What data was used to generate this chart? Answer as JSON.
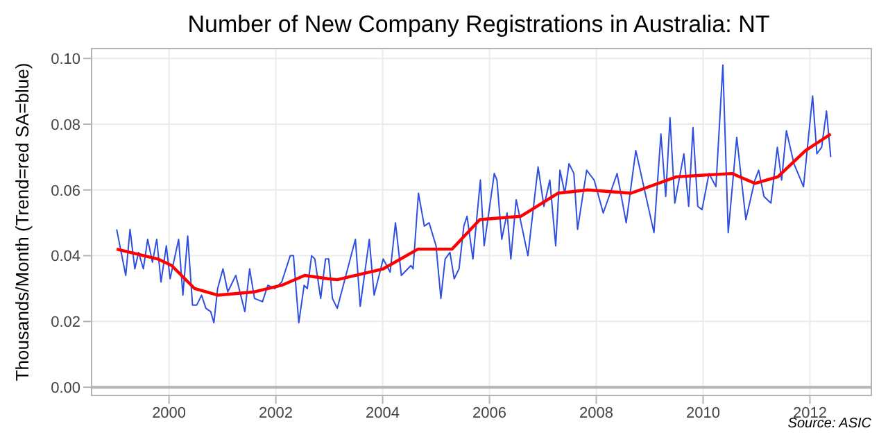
{
  "chart_data": {
    "type": "line",
    "title": "Number of New Company Registrations in Australia: NT",
    "ylabel": "Thousands/Month (Trend=red SA=blue)",
    "annotations": [
      "Source: ASIC"
    ],
    "xlim": [
      1998.55,
      2013.15
    ],
    "xticks": [
      2000,
      2002,
      2004,
      2006,
      2008,
      2010,
      2012
    ],
    "ylim": [
      -0.0025,
      0.103
    ],
    "yticks": [
      {
        "value": 0,
        "label": "0.00"
      },
      {
        "value": 0.02,
        "label": "0.02"
      },
      {
        "value": 0.04,
        "label": "0.04"
      },
      {
        "value": 0.06,
        "label": "0.06"
      },
      {
        "value": 0.08,
        "label": "0.08"
      },
      {
        "value": 0.1,
        "label": "0.10"
      }
    ],
    "grid": true,
    "marker": "none",
    "ref_lines": [
      {
        "axis": "y",
        "value": 0,
        "color": "#b3b3b3"
      }
    ],
    "series": [
      {
        "color": "#2f4fe0",
        "x": [
          1999.02,
          1999.19,
          1999.27,
          1999.36,
          1999.43,
          1999.52,
          1999.6,
          1999.69,
          1999.77,
          1999.85,
          1999.95,
          2000.02,
          2000.18,
          2000.26,
          2000.35,
          2000.44,
          2000.52,
          2000.61,
          2000.69,
          2000.78,
          2000.84,
          2000.91,
          2001.01,
          2001.1,
          2001.25,
          2001.42,
          2001.51,
          2001.6,
          2001.75,
          2001.85,
          2001.98,
          2002.11,
          2002.27,
          2002.33,
          2002.43,
          2002.53,
          2002.59,
          2002.67,
          2002.73,
          2002.84,
          2002.93,
          2002.99,
          2003.06,
          2003.15,
          2003.49,
          2003.58,
          2003.75,
          2003.84,
          2004.01,
          2004.14,
          2004.24,
          2004.35,
          2004.53,
          2004.57,
          2004.67,
          2004.78,
          2004.87,
          2005.0,
          2005.09,
          2005.17,
          2005.26,
          2005.34,
          2005.43,
          2005.52,
          2005.58,
          2005.69,
          2005.83,
          2005.9,
          2006.09,
          2006.14,
          2006.23,
          2006.33,
          2006.4,
          2006.5,
          2006.72,
          2006.91,
          2007.02,
          2007.13,
          2007.24,
          2007.32,
          2007.41,
          2007.49,
          2007.58,
          2007.65,
          2007.82,
          2007.96,
          2008.13,
          2008.39,
          2008.56,
          2008.74,
          2009.08,
          2009.21,
          2009.3,
          2009.38,
          2009.47,
          2009.64,
          2009.73,
          2009.81,
          2009.9,
          2009.98,
          2010.11,
          2010.24,
          2010.37,
          2010.47,
          2010.63,
          2010.8,
          2010.97,
          2011.04,
          2011.14,
          2011.27,
          2011.39,
          2011.47,
          2011.56,
          2011.7,
          2011.88,
          2012.05,
          2012.13,
          2012.22,
          2012.31,
          2012.39
        ],
        "values": [
          0.048,
          0.034,
          0.048,
          0.036,
          0.041,
          0.036,
          0.045,
          0.038,
          0.045,
          0.032,
          0.043,
          0.033,
          0.045,
          0.028,
          0.046,
          0.025,
          0.025,
          0.028,
          0.024,
          0.023,
          0.0196,
          0.03,
          0.036,
          0.029,
          0.034,
          0.023,
          0.036,
          0.027,
          0.026,
          0.031,
          0.03,
          0.032,
          0.04,
          0.04,
          0.0196,
          0.031,
          0.03,
          0.04,
          0.039,
          0.027,
          0.039,
          0.039,
          0.027,
          0.024,
          0.045,
          0.0246,
          0.045,
          0.028,
          0.039,
          0.035,
          0.05,
          0.034,
          0.037,
          0.036,
          0.059,
          0.049,
          0.05,
          0.043,
          0.027,
          0.039,
          0.041,
          0.033,
          0.036,
          0.049,
          0.052,
          0.039,
          0.063,
          0.043,
          0.065,
          0.063,
          0.045,
          0.053,
          0.039,
          0.057,
          0.04,
          0.067,
          0.055,
          0.063,
          0.043,
          0.066,
          0.059,
          0.068,
          0.065,
          0.048,
          0.066,
          0.063,
          0.053,
          0.065,
          0.05,
          0.072,
          0.047,
          0.077,
          0.058,
          0.082,
          0.056,
          0.071,
          0.055,
          0.079,
          0.055,
          0.054,
          0.065,
          0.061,
          0.098,
          0.047,
          0.076,
          0.051,
          0.063,
          0.066,
          0.058,
          0.056,
          0.073,
          0.063,
          0.078,
          0.068,
          0.061,
          0.0886,
          0.071,
          0.073,
          0.084,
          0.07
        ]
      },
      {
        "color": "#ff0000",
        "x": [
          1999.02,
          1999.79,
          2000.05,
          2000.48,
          2000.91,
          2001.6,
          2002.11,
          2002.54,
          2002.97,
          2003.15,
          2004.01,
          2004.66,
          2005.3,
          2005.82,
          2006.59,
          2007.28,
          2007.84,
          2008.65,
          2009.5,
          2010.54,
          2010.97,
          2011.4,
          2011.92,
          2012.39
        ],
        "values": [
          0.042,
          0.039,
          0.037,
          0.03,
          0.028,
          0.029,
          0.031,
          0.034,
          0.033,
          0.0327,
          0.036,
          0.042,
          0.042,
          0.051,
          0.052,
          0.059,
          0.06,
          0.059,
          0.064,
          0.065,
          0.062,
          0.064,
          0.072,
          0.077
        ]
      }
    ]
  }
}
